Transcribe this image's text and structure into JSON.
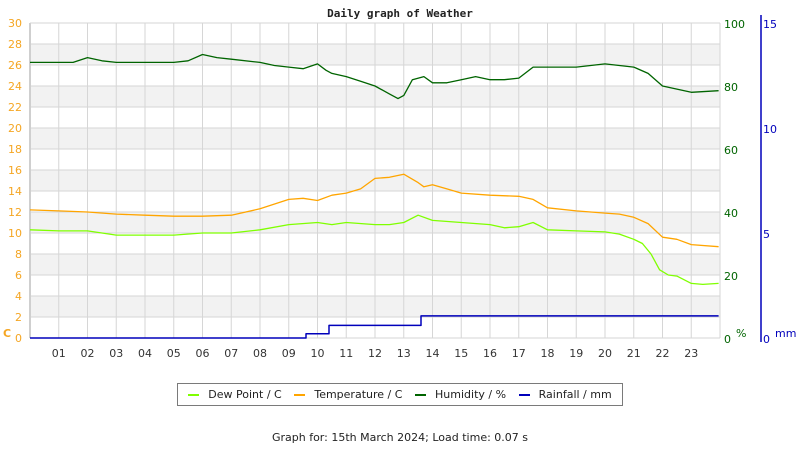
{
  "chart_data": {
    "type": "line",
    "title": "Daily graph of Weather",
    "xlabel": "",
    "x_ticks": [
      "01",
      "02",
      "03",
      "04",
      "05",
      "06",
      "07",
      "08",
      "09",
      "10",
      "11",
      "12",
      "13",
      "14",
      "15",
      "16",
      "17",
      "18",
      "19",
      "20",
      "21",
      "22",
      "23"
    ],
    "x_range": [
      0,
      24
    ],
    "axes": {
      "left": {
        "label": "C",
        "range": [
          0,
          30
        ],
        "ticks": [
          0,
          2,
          4,
          6,
          8,
          10,
          12,
          14,
          16,
          18,
          20,
          22,
          24,
          26,
          28,
          30
        ],
        "color": "#f5a623"
      },
      "right1": {
        "label": "%",
        "range": [
          0,
          100
        ],
        "ticks": [
          0,
          20,
          40,
          60,
          80,
          100
        ],
        "color": "#006400"
      },
      "right2": {
        "label": "mm",
        "range": [
          0,
          15
        ],
        "ticks": [
          0,
          5,
          10,
          15
        ],
        "color": "#0000bb"
      }
    },
    "grid": true,
    "legend_position": "bottom",
    "series": [
      {
        "name": "Dew Point / C",
        "color": "#7fff00",
        "axis": "left",
        "x": [
          0,
          1,
          2,
          3,
          4,
          5,
          6,
          7,
          8,
          9,
          10,
          10.5,
          11,
          12,
          12.5,
          13,
          13.5,
          14,
          15,
          16,
          16.5,
          17,
          17.5,
          18,
          19,
          20,
          20.5,
          21,
          21.3,
          21.6,
          21.9,
          22.2,
          22.5,
          23,
          23.4,
          23.95
        ],
        "values": [
          10.3,
          10.2,
          10.2,
          9.8,
          9.8,
          9.8,
          10.0,
          10.0,
          10.3,
          10.8,
          11.0,
          10.8,
          11.0,
          10.8,
          10.8,
          11.0,
          11.7,
          11.2,
          11.0,
          10.8,
          10.5,
          10.6,
          11.0,
          10.3,
          10.2,
          10.1,
          9.9,
          9.4,
          9.0,
          8.0,
          6.5,
          6.0,
          5.9,
          5.2,
          5.1,
          5.2
        ]
      },
      {
        "name": "Temperature / C",
        "color": "#ffa500",
        "axis": "left",
        "x": [
          0,
          1,
          2,
          3,
          4,
          5,
          6,
          7,
          8,
          9,
          9.5,
          10,
          10.5,
          11,
          11.5,
          12,
          12.5,
          13,
          13.5,
          13.7,
          14,
          14.5,
          15,
          16,
          17,
          17.5,
          18,
          19,
          20,
          20.5,
          21,
          21.5,
          22,
          22.5,
          23,
          23.95
        ],
        "values": [
          12.2,
          12.1,
          12.0,
          11.8,
          11.7,
          11.6,
          11.6,
          11.7,
          12.3,
          13.2,
          13.3,
          13.1,
          13.6,
          13.8,
          14.2,
          15.2,
          15.3,
          15.6,
          14.8,
          14.4,
          14.6,
          14.2,
          13.8,
          13.6,
          13.5,
          13.2,
          12.4,
          12.1,
          11.9,
          11.8,
          11.5,
          10.9,
          9.6,
          9.4,
          8.9,
          8.7
        ]
      },
      {
        "name": "Humidity / %",
        "color": "#006400",
        "axis": "right1",
        "x": [
          0,
          0.4,
          1.5,
          2,
          2.5,
          3,
          4,
          5,
          5.5,
          6,
          6.5,
          7,
          8,
          8.5,
          9,
          9.5,
          10,
          10.3,
          10.5,
          11,
          11.5,
          12,
          12.5,
          12.8,
          13,
          13.3,
          13.7,
          14,
          14.5,
          15,
          15.5,
          16,
          16.5,
          17,
          17.5,
          18,
          19,
          20,
          20.5,
          21,
          21.5,
          22,
          22.5,
          23,
          23.95
        ],
        "values": [
          87.5,
          87.5,
          87.5,
          89,
          88,
          87.5,
          87.5,
          87.5,
          88,
          90,
          89,
          88.5,
          87.5,
          86.5,
          86,
          85.5,
          87,
          85,
          84,
          83,
          81.5,
          80,
          77.5,
          76,
          77,
          82,
          83,
          81,
          81,
          82,
          83,
          82,
          82,
          82.5,
          86,
          86,
          86,
          87,
          86.5,
          86,
          84,
          80,
          79,
          78,
          78.5
        ]
      },
      {
        "name": "Rainfall / mm",
        "color": "#0000bb",
        "axis": "right2",
        "x": [
          0,
          9.6,
          9.6,
          10.4,
          10.4,
          13.6,
          13.6,
          23.95
        ],
        "values": [
          0,
          0,
          0.2,
          0.2,
          0.6,
          0.6,
          1.05,
          1.05
        ]
      }
    ]
  },
  "legend": {
    "items": [
      {
        "label": "Dew Point / C",
        "color": "#7fff00"
      },
      {
        "label": "Temperature / C",
        "color": "#ffa500"
      },
      {
        "label": "Humidity / %",
        "color": "#006400"
      },
      {
        "label": "Rainfall / mm",
        "color": "#0000bb"
      }
    ]
  },
  "footer": {
    "text": "Graph for: 15th March 2024; Load time: 0.07 s"
  }
}
